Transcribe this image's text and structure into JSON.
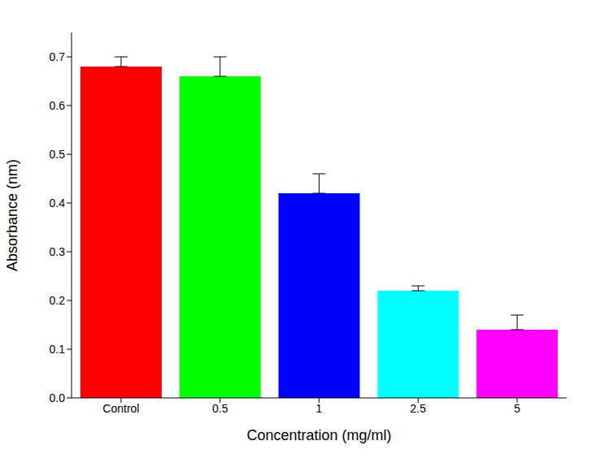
{
  "chart_data": {
    "type": "bar",
    "x_label": "Concentration (mg/ml)",
    "y_label": "Absorbance (nm)",
    "categories": [
      "Control",
      "0.5",
      "1",
      "2.5",
      "5"
    ],
    "values": [
      0.68,
      0.66,
      0.42,
      0.22,
      0.14
    ],
    "errors": [
      0.02,
      0.04,
      0.04,
      0.01,
      0.03
    ],
    "colors": [
      "#ff0000",
      "#00ff00",
      "#0000ff",
      "#00ffff",
      "#ff00ff"
    ],
    "ylim": [
      0,
      0.75
    ],
    "yticks": [
      {
        "value": 0,
        "label": "0.0"
      },
      0.1,
      0.2,
      0.3,
      0.4,
      0.5,
      0.6,
      0.7
    ],
    "grid": false
  }
}
